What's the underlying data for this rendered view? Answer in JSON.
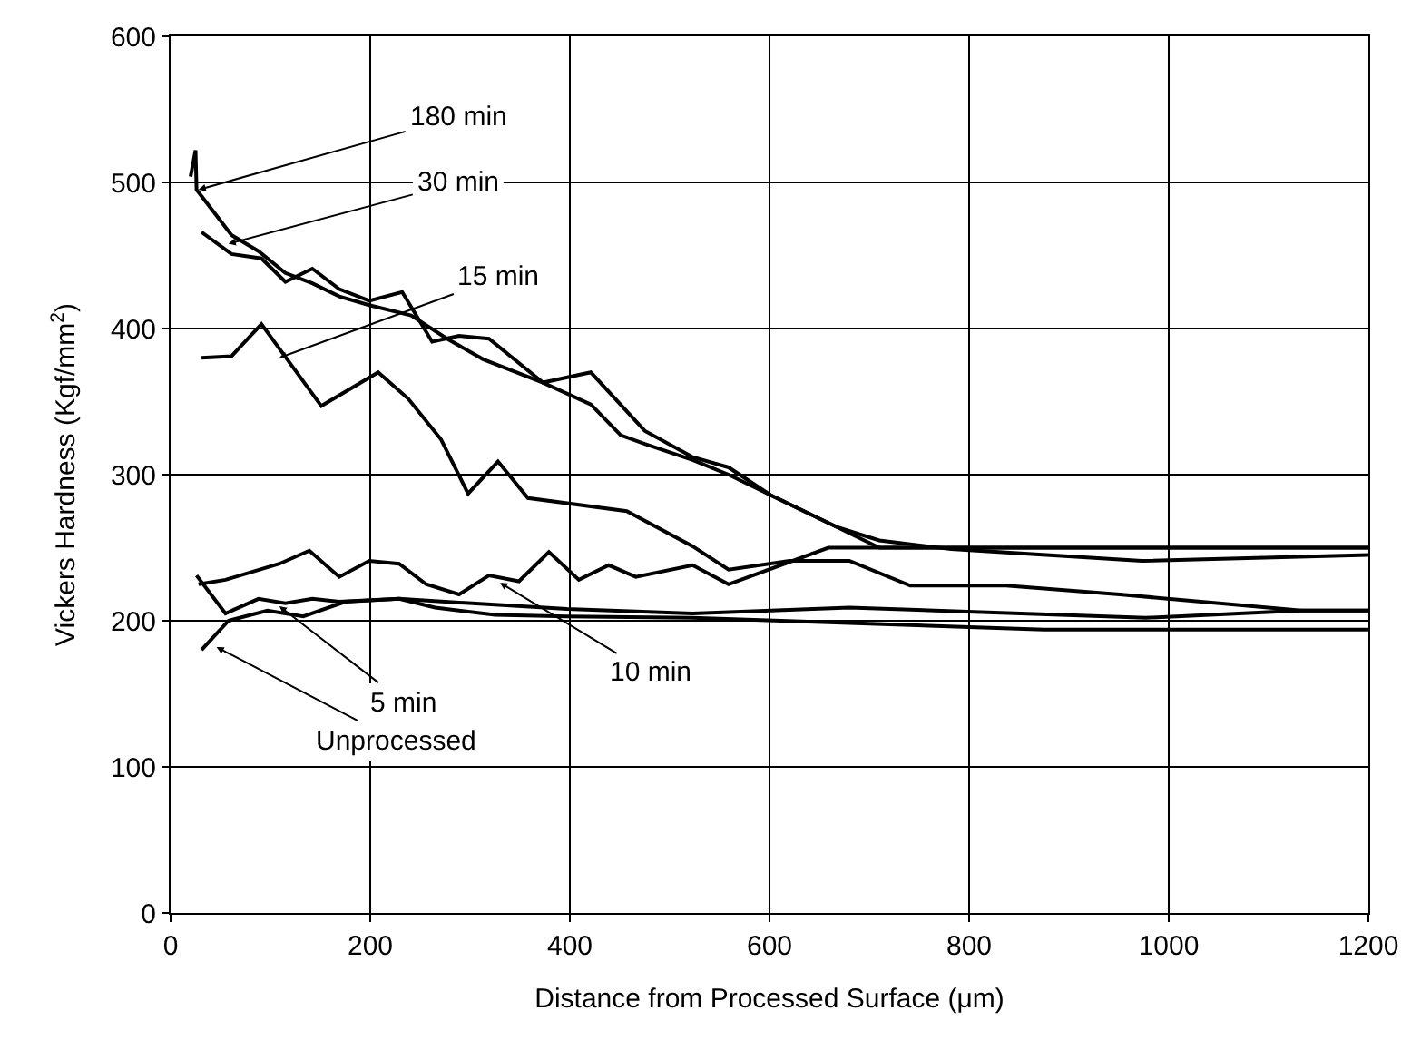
{
  "chart_data": {
    "type": "line",
    "xlabel": "Distance from Processed Surface (μm)",
    "ylabel": "Vickers Hardness (Kgf/mm$^{2}$)",
    "xlim": [
      0,
      1200
    ],
    "xticks": [
      0,
      200,
      400,
      600,
      800,
      1000,
      1200
    ],
    "ylim": [
      0,
      600
    ],
    "yticks": [
      0,
      100,
      200,
      300,
      400,
      500,
      600
    ],
    "grid": true,
    "legend": false,
    "marker": "none",
    "line_style": "solid",
    "series": [
      {
        "color": "#000000",
        "x": [
          20,
          25,
          26,
          61,
          88,
          115,
          142,
          169,
          199,
          241,
          277,
          313,
          373,
          421,
          451,
          475,
          523,
          559,
          601,
          668,
          710,
          776,
          1200
        ],
        "values": [
          504,
          522,
          495,
          464,
          453,
          438,
          431,
          422,
          416,
          409,
          393,
          379,
          363,
          348,
          327,
          321,
          310,
          300,
          286,
          264,
          250,
          250,
          250
        ]
      },
      {
        "color": "#000000",
        "x": [
          31,
          61,
          91,
          115,
          142,
          169,
          199,
          232,
          262,
          289,
          319,
          373,
          421,
          475,
          523,
          559,
          601,
          668,
          710,
          782,
          973,
          1200
        ],
        "values": [
          466,
          451,
          448,
          432,
          441,
          427,
          419,
          425,
          391,
          395,
          393,
          363,
          370,
          330,
          312,
          305,
          286,
          264,
          255,
          249,
          241,
          245
        ]
      },
      {
        "color": "#000000",
        "x": [
          31,
          61,
          91,
          151,
          208,
          238,
          271,
          298,
          328,
          358,
          457,
          523,
          559,
          620,
          680,
          741,
          837,
          951,
          1133,
          1200
        ],
        "values": [
          380,
          381,
          403,
          347,
          370,
          352,
          324,
          287,
          309,
          284,
          275,
          251,
          235,
          241,
          241,
          224,
          224,
          218,
          207,
          207
        ]
      },
      {
        "color": "#000000",
        "x": [
          28,
          55,
          109,
          139,
          169,
          199,
          229,
          256,
          289,
          319,
          349,
          379,
          409,
          439,
          466,
          523,
          559,
          659,
          1200
        ],
        "values": [
          225,
          228,
          239,
          248,
          230,
          241,
          239,
          225,
          218,
          231,
          227,
          247,
          228,
          238,
          230,
          238,
          225,
          250,
          250
        ]
      },
      {
        "color": "#000000",
        "x": [
          26,
          55,
          88,
          115,
          142,
          169,
          229,
          265,
          325,
          397,
          523,
          875,
          1200
        ],
        "values": [
          231,
          205,
          215,
          212,
          215,
          213,
          215,
          209,
          204,
          203,
          202,
          194,
          194
        ]
      },
      {
        "color": "#000000",
        "x": [
          31,
          58,
          97,
          133,
          175,
          229,
          397,
          523,
          680,
          977,
          1133,
          1200
        ],
        "values": [
          180,
          200,
          207,
          203,
          213,
          215,
          208,
          205,
          209,
          202,
          207,
          207
        ]
      }
    ],
    "annotations": [
      {
        "text": "180 min",
        "x": 28,
        "y": 495
      },
      {
        "text": "30 min",
        "x": 58,
        "y": 458
      },
      {
        "text": "15 min",
        "x": 109,
        "y": 380
      },
      {
        "text": "10 min",
        "x": 330,
        "y": 226
      },
      {
        "text": "5 min",
        "x": 109,
        "y": 210
      },
      {
        "text": "Unprocessed",
        "x": 46,
        "y": 182
      }
    ]
  }
}
